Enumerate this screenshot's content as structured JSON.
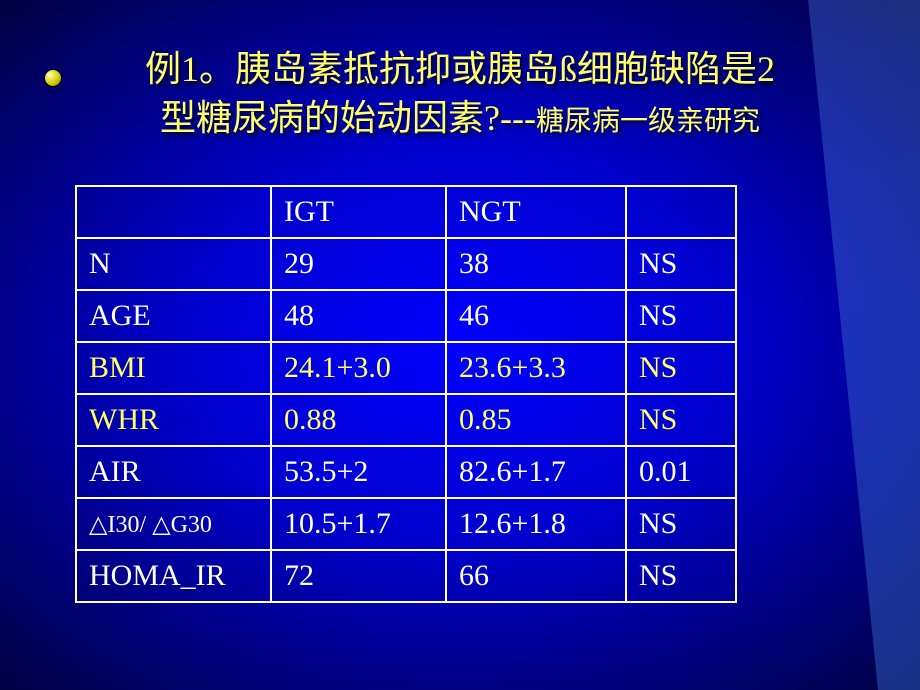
{
  "title": {
    "line1": "例1。胰岛素抵抗抑或胰岛ß细胞缺陷是2",
    "line2_main": "型糖尿病的始动因素?---",
    "line2_sub": "糖尿病一级亲研究"
  },
  "table": {
    "header": {
      "c0": "",
      "c1": "IGT",
      "c2": "NGT",
      "c3": ""
    },
    "rows": [
      {
        "c0": "N",
        "c1": "29",
        "c2": "38",
        "c3": "NS",
        "highlight": false,
        "smallLabel": false
      },
      {
        "c0": "AGE",
        "c1": "48",
        "c2": "46",
        "c3": "NS",
        "highlight": false,
        "smallLabel": false
      },
      {
        "c0": "BMI",
        "c1": "24.1+3.0",
        "c2": "23.6+3.3",
        "c3": "NS",
        "highlight": true,
        "smallLabel": false
      },
      {
        "c0": "WHR",
        "c1": "0.88",
        "c2": "0.85",
        "c3": "NS",
        "highlight": true,
        "smallLabel": false
      },
      {
        "c0": "AIR",
        "c1": "53.5+2",
        "c2": "82.6+1.7",
        "c3": "0.01",
        "highlight": false,
        "smallLabel": false
      },
      {
        "c0": "△I30/ △G30",
        "c1": "10.5+1.7",
        "c2": "12.6+1.8",
        "c3": "NS",
        "highlight": false,
        "smallLabel": true
      },
      {
        "c0": "HOMA_IR",
        "c1": "72",
        "c2": "66",
        "c3": "NS",
        "highlight": false,
        "smallLabel": false
      }
    ]
  },
  "colors": {
    "title_color": "#ffff66",
    "text_color": "#ffffff",
    "highlight_color": "#ffff66",
    "border_color": "#ffffff"
  }
}
